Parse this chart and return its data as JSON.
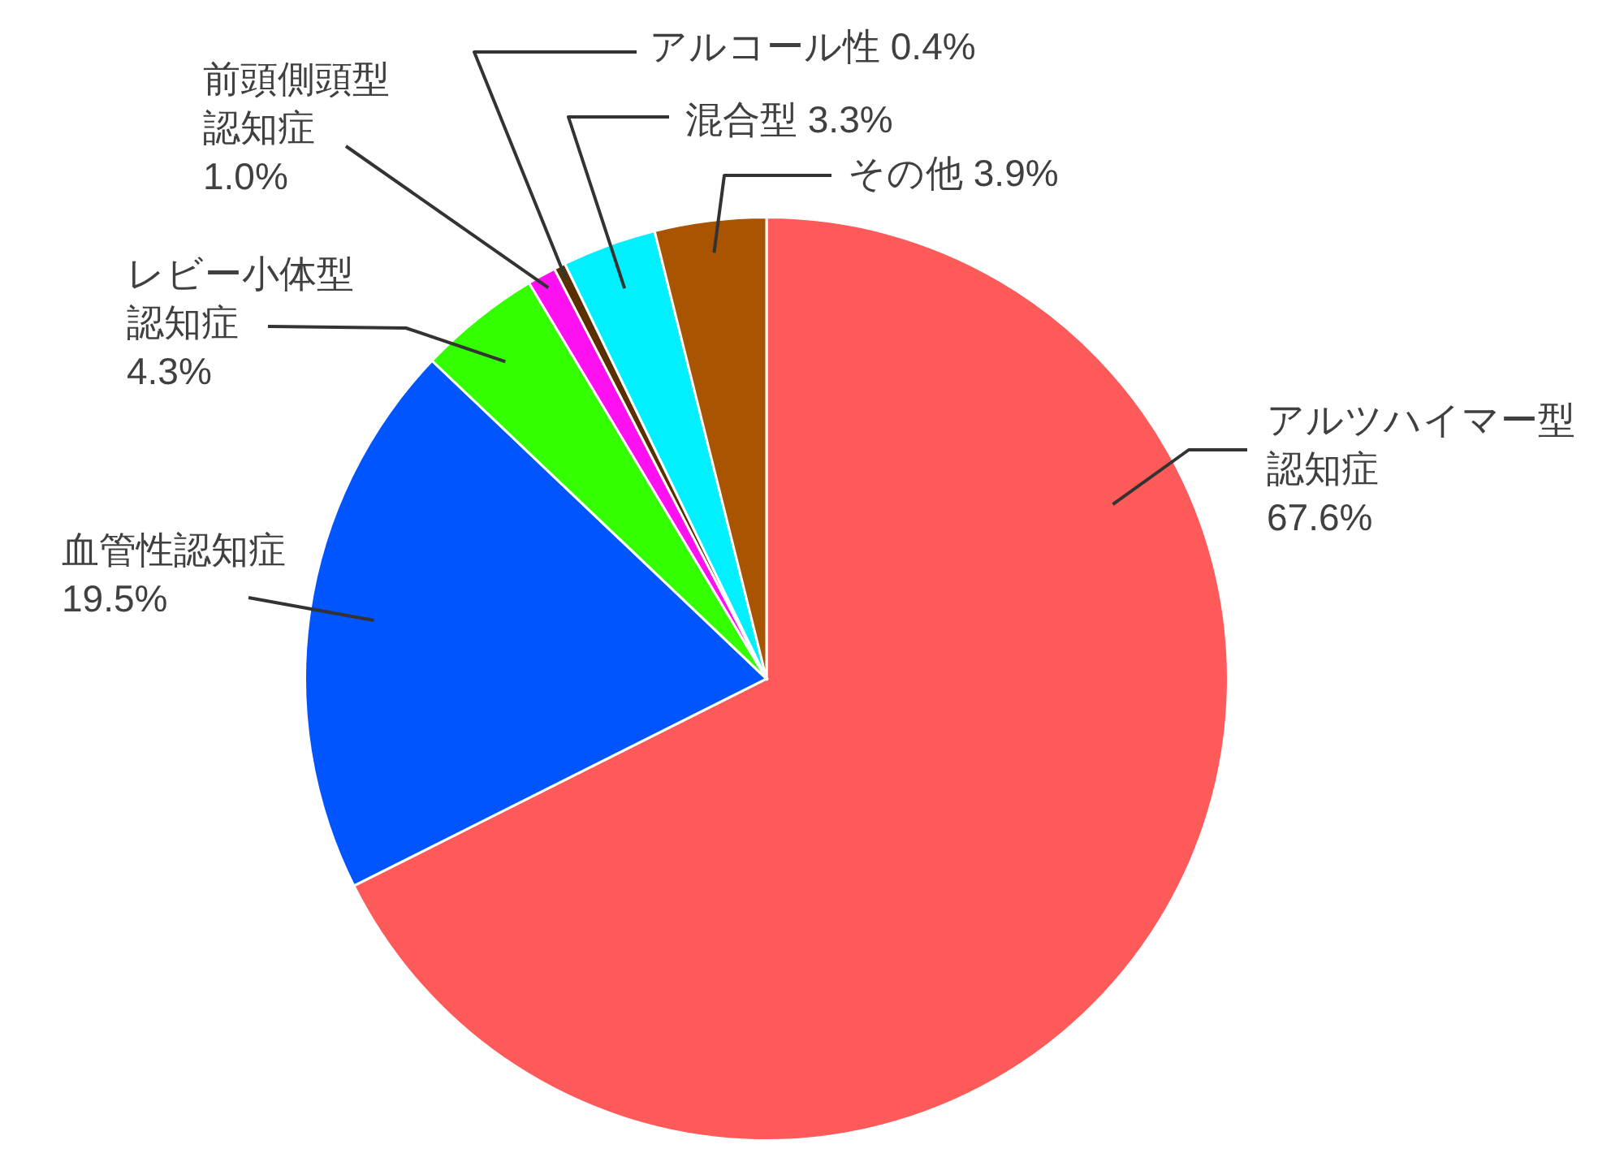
{
  "chart_data": {
    "type": "pie",
    "categories": [
      "アルツハイマー型認知症",
      "血管性認知症",
      "レビー小体型認知症",
      "前頭側頭型認知症",
      "アルコール性",
      "混合型",
      "その他"
    ],
    "values": [
      67.6,
      19.5,
      4.3,
      1.0,
      0.4,
      3.3,
      3.9
    ],
    "colors": [
      "#ff5a5a",
      "#0055ff",
      "#33ff00",
      "#ff10f0",
      "#5a3000",
      "#00f0ff",
      "#a85400"
    ],
    "value_labels": [
      "67.6%",
      "19.5%",
      "4.3%",
      "1.0%",
      "0.4%",
      "3.3%",
      "3.9%"
    ]
  }
}
